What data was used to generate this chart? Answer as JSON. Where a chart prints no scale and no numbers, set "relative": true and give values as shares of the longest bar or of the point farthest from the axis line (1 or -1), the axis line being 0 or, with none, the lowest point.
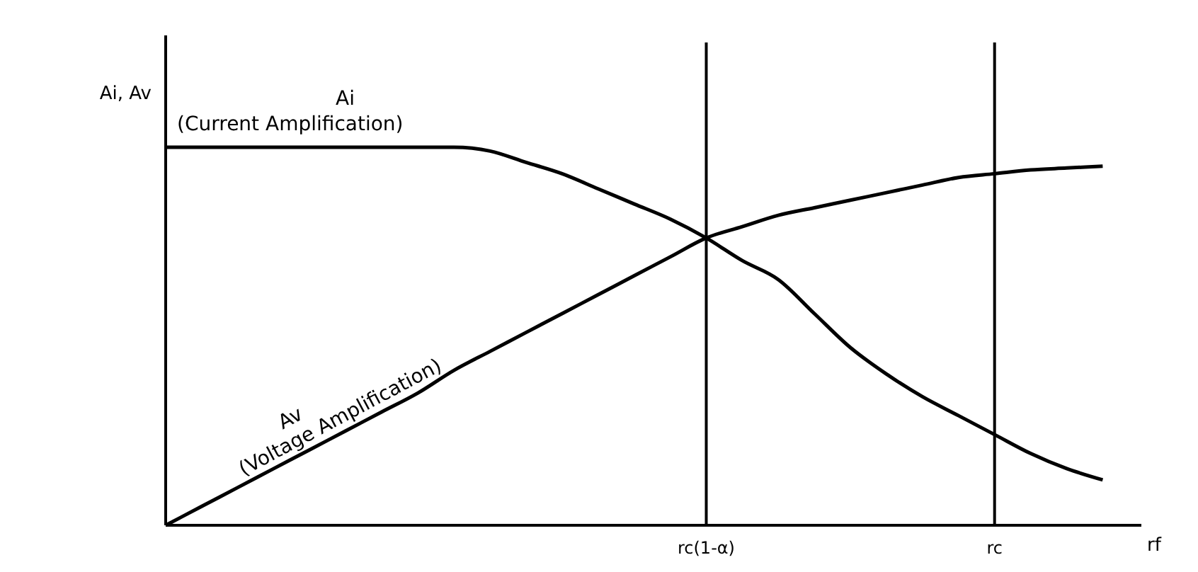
{
  "chart_data": {
    "type": "line",
    "relative": true,
    "ylabel": "Ai, Av",
    "xlabel": "rf",
    "categories": [
      null,
      null,
      null,
      null,
      null,
      null,
      null,
      null,
      null,
      null,
      null,
      null,
      null,
      null,
      null,
      "rc(1-α)",
      null,
      null,
      null,
      null,
      null,
      null,
      null,
      "rc",
      null,
      null,
      null
    ],
    "series": [
      {
        "name": "Ai (Current Amplification)",
        "color": "#000000",
        "values": [
          1,
          1,
          1,
          1,
          1,
          1,
          1,
          1,
          1,
          0.99,
          0.96,
          0.93,
          0.89,
          0.85,
          0.81,
          0.76,
          0.7,
          0.65,
          0.56,
          0.47,
          0.4,
          0.34,
          0.29,
          0.24,
          0.19,
          0.15,
          0.12
        ]
      },
      {
        "name": "Av (Voltage Amplification)",
        "color": "#000000",
        "values": [
          0,
          0.05,
          0.1,
          0.15,
          0.2,
          0.25,
          0.3,
          0.35,
          0.41,
          0.46,
          0.51,
          0.56,
          0.61,
          0.66,
          0.71,
          0.76,
          0.79,
          0.82,
          0.84,
          0.86,
          0.88,
          0.9,
          0.92,
          0.93,
          0.94,
          0.945,
          0.95
        ]
      }
    ],
    "ref_lines": [
      {
        "axis": "x",
        "value": "rc(1-α)"
      },
      {
        "axis": "x",
        "value": "rc"
      }
    ],
    "marker": "none",
    "line_style": "solid"
  }
}
